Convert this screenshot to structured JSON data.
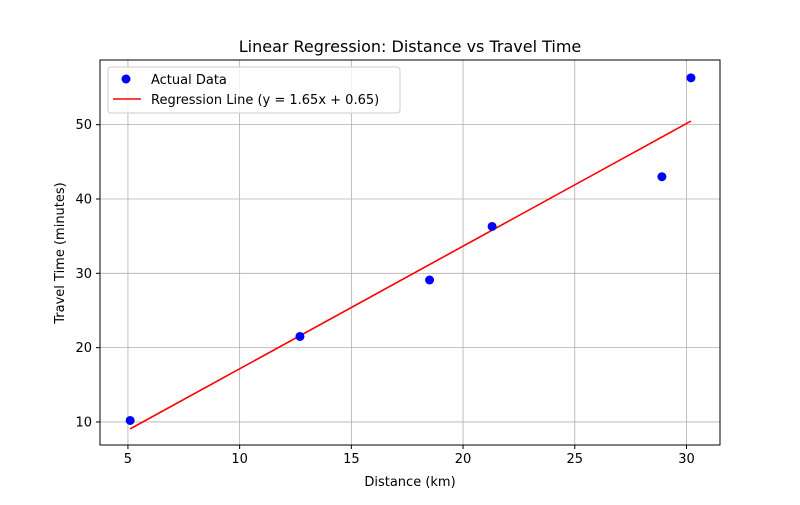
{
  "chart_data": {
    "type": "scatter",
    "title": "Linear Regression: Distance vs Travel Time",
    "xlabel": "Distance (km)",
    "ylabel": "Travel Time (minutes)",
    "xlim": [
      3.75,
      31.5
    ],
    "ylim": [
      6.9,
      58.7
    ],
    "xticks": [
      5,
      10,
      15,
      20,
      25,
      30
    ],
    "yticks": [
      10,
      20,
      30,
      40,
      50
    ],
    "grid": true,
    "legend_position": "upper-left",
    "series": [
      {
        "name": "Actual Data",
        "kind": "scatter",
        "color": "#0000ff",
        "x": [
          5.1,
          12.7,
          18.5,
          21.3,
          28.9,
          30.2
        ],
        "y": [
          10.2,
          21.5,
          29.1,
          36.3,
          43.0,
          56.3
        ]
      },
      {
        "name": "Regression Line (y = 1.65x + 0.65)",
        "kind": "line",
        "color": "#ff0000",
        "x": [
          5.1,
          30.2
        ],
        "y": [
          9.07,
          50.48
        ]
      }
    ]
  }
}
